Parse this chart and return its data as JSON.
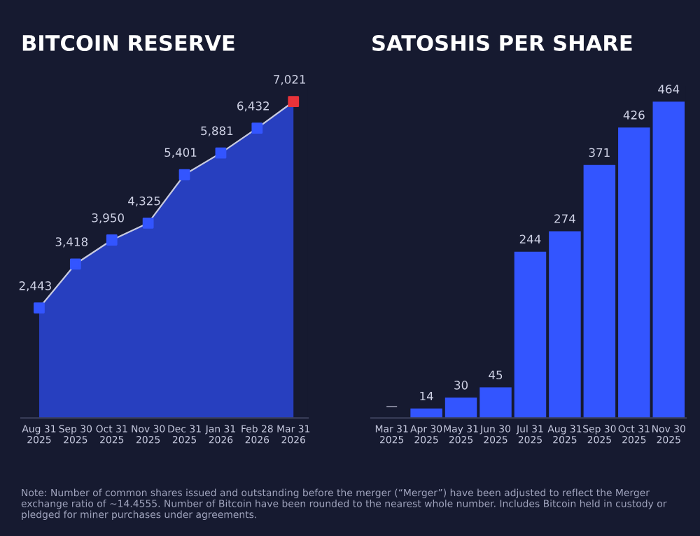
{
  "chart_data": [
    {
      "type": "area",
      "title": "BITCOIN RESERVE",
      "categories": [
        "Aug 31\n2025",
        "Sep 30\n2025",
        "Oct 31\n2025",
        "Nov 30\n2025",
        "Dec 31\n2025",
        "Jan 31\n2026",
        "Feb 28\n2026",
        "Mar 31\n2026"
      ],
      "series": [
        {
          "values": [
            2443,
            3418,
            3950,
            4325,
            5401,
            5881,
            6432,
            7021
          ],
          "color": "#2a46d8",
          "colors": [
            "#3355ff",
            "#3355ff",
            "#3355ff",
            "#3355ff",
            "#3355ff",
            "#3355ff",
            "#3355ff",
            "#e8333a"
          ],
          "value_labels": [
            "2,443",
            "3,418",
            "3,950",
            "4,325",
            "5,401",
            "5,881",
            "6,432",
            "7,021"
          ]
        }
      ],
      "marker": "square",
      "grid": false,
      "tick_labels": "x"
    },
    {
      "type": "bar",
      "title": "SATOSHIS PER SHARE",
      "categories": [
        "Mar 31\n2025",
        "Apr 30\n2025",
        "May 31\n2025",
        "Jun 30\n2025",
        "Jul 31\n2025",
        "Aug 31\n2025",
        "Sep 30\n2025",
        "Oct 31\n2025",
        "Nov 30\n2025"
      ],
      "values": [
        0,
        14,
        30,
        45,
        244,
        274,
        371,
        426,
        464
      ],
      "value_labels": [
        "—",
        "14",
        "30",
        "45",
        "244",
        "274",
        "371",
        "426",
        "464"
      ],
      "color": "#3355ff",
      "grid": false,
      "tick_labels": "x",
      "annotations": [
        "Note: Number of common shares issued and outstanding before the merger (“Merger”) have been adjusted to reflect the Merger exchange ratio of ~14.4555. Number of Bitcoin have been rounded to the nearest whole number. Includes Bitcoin held in custody or pledged for miner purchases under agreements."
      ]
    }
  ]
}
